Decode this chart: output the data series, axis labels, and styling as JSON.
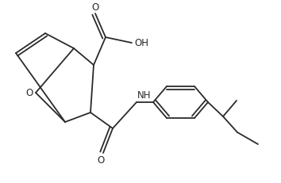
{
  "bg_color": "#ffffff",
  "line_color": "#2a2a2a",
  "line_width": 1.3,
  "font_size": 8.5,
  "fig_width": 3.54,
  "fig_height": 2.32,
  "dpi": 100,
  "xlim": [
    0,
    354
  ],
  "ylim": [
    0,
    232
  ]
}
